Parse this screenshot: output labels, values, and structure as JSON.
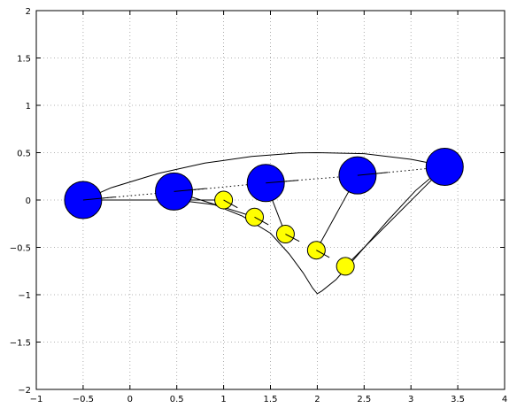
{
  "chart_data": {
    "type": "scatter",
    "title": "",
    "xlabel": "",
    "ylabel": "",
    "xlim": [
      -1,
      4
    ],
    "ylim": [
      -2,
      2
    ],
    "grid": true,
    "x_ticks": [
      -1,
      -0.5,
      0,
      0.5,
      1,
      1.5,
      2,
      2.5,
      3,
      3.5,
      4
    ],
    "x_tick_labels": [
      "−1",
      "−0.5",
      "0",
      "0.5",
      "1",
      "1.5",
      "2",
      "2.5",
      "3",
      "3.5",
      "4"
    ],
    "y_ticks": [
      -2,
      -1.5,
      -1,
      -0.5,
      0,
      0.5,
      1,
      1.5,
      2
    ],
    "y_tick_labels": [
      "−2",
      "−1.5",
      "−1",
      "−0.5",
      "0",
      "0.5",
      "1",
      "1.5",
      "2"
    ],
    "series": [
      {
        "style": "solid-line",
        "x": [
          -0.5,
          -0.2,
          0.3,
          0.8,
          1.3,
          1.8,
          2.0,
          2.5,
          3.0,
          3.36
        ],
        "y": [
          0.0,
          0.13,
          0.28,
          0.39,
          0.46,
          0.497,
          0.5,
          0.49,
          0.43,
          0.36
        ]
      },
      {
        "style": "solid-line",
        "x": [
          -0.5,
          0.0,
          0.5,
          0.9,
          1.2,
          1.5,
          1.7,
          1.85,
          1.95,
          2.0,
          2.05,
          2.2,
          2.45,
          2.75,
          3.05,
          3.36
        ],
        "y": [
          0.0,
          0.0,
          0.0,
          -0.05,
          -0.17,
          -0.35,
          -0.57,
          -0.77,
          -0.93,
          -0.99,
          -0.96,
          -0.84,
          -0.56,
          -0.22,
          0.1,
          0.36
        ]
      },
      {
        "style": "dotted-line",
        "x": [
          -0.5,
          0.5,
          1.45,
          2.43,
          3.36
        ],
        "y": [
          0.0,
          0.09,
          0.18,
          0.26,
          0.35
        ]
      },
      {
        "style": "connector-lines",
        "x": [
          1.0,
          1.33,
          1.66,
          1.99,
          2.3
        ],
        "y": [
          0.0,
          -0.18,
          -0.36,
          -0.53,
          -0.7
        ]
      },
      {
        "style": "large-circles",
        "color": "#0000ff",
        "x": [
          -0.5,
          0.47,
          1.45,
          2.43,
          3.36
        ],
        "y": [
          0.0,
          0.09,
          0.18,
          0.26,
          0.35
        ]
      },
      {
        "style": "small-circles",
        "color": "#ffff00",
        "x": [
          1.0,
          1.33,
          1.66,
          1.99,
          2.3
        ],
        "y": [
          0.0,
          -0.18,
          -0.36,
          -0.53,
          -0.7
        ]
      }
    ]
  }
}
